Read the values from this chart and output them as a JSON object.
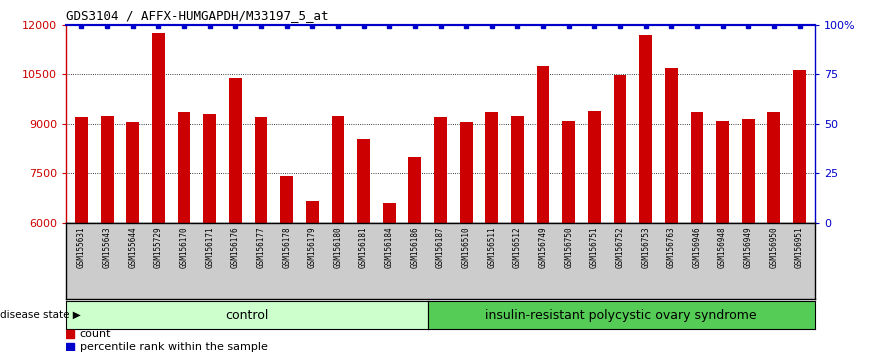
{
  "title": "GDS3104 / AFFX-HUMGAPDH/M33197_5_at",
  "samples": [
    "GSM155631",
    "GSM155643",
    "GSM155644",
    "GSM155729",
    "GSM156170",
    "GSM156171",
    "GSM156176",
    "GSM156177",
    "GSM156178",
    "GSM156179",
    "GSM156180",
    "GSM156181",
    "GSM156184",
    "GSM156186",
    "GSM156187",
    "GSM156510",
    "GSM156511",
    "GSM156512",
    "GSM156749",
    "GSM156750",
    "GSM156751",
    "GSM156752",
    "GSM156753",
    "GSM156763",
    "GSM156946",
    "GSM156948",
    "GSM156949",
    "GSM156950",
    "GSM156951"
  ],
  "values": [
    9200,
    9250,
    9050,
    11750,
    9350,
    9300,
    10380,
    9200,
    7420,
    6680,
    9250,
    8550,
    6620,
    8000,
    9200,
    9050,
    9350,
    9250,
    10750,
    9100,
    9380,
    10480,
    11680,
    10700,
    9350,
    9100,
    9150,
    9350,
    10620
  ],
  "control_count": 14,
  "ymin": 6000,
  "ymax": 12000,
  "yticks": [
    6000,
    7500,
    9000,
    10500,
    12000
  ],
  "right_yticks": [
    0,
    25,
    50,
    75,
    100
  ],
  "bar_color": "#cc0000",
  "percentile_color": "#0000cc",
  "control_label": "control",
  "disease_label": "insulin-resistant polycystic ovary syndrome",
  "control_bg": "#ccffcc",
  "disease_bg": "#55cc55",
  "label_bg": "#cccccc",
  "legend_count": "count",
  "legend_percentile": "percentile rank within the sample",
  "disease_state_label": "disease state"
}
